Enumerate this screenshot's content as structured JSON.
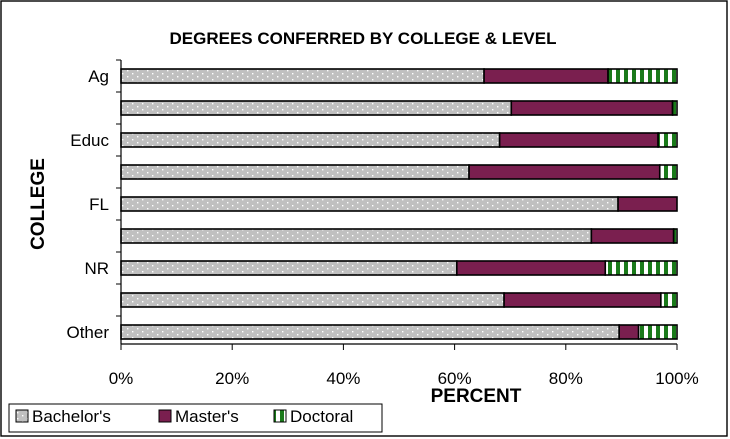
{
  "chart_data": {
    "type": "bar",
    "orientation": "horizontal",
    "stacked": "percent",
    "title": "DEGREES CONFERRED BY COLLEGE & LEVEL",
    "xlabel": "PERCENT",
    "ylabel": "COLLEGE",
    "xlim": [
      0,
      100
    ],
    "x_ticks": [
      "0%",
      "20%",
      "40%",
      "60%",
      "80%",
      "100%"
    ],
    "categories": [
      "Ag",
      "",
      "Educ",
      "",
      "FL",
      "",
      "NR",
      "",
      "Other"
    ],
    "series": [
      {
        "name": "Bachelor's",
        "values": [
          65.3,
          70.2,
          68.1,
          62.6,
          89.4,
          84.6,
          60.4,
          68.9,
          89.6
        ]
      },
      {
        "name": "Master's",
        "values": [
          22.3,
          29.0,
          28.5,
          34.3,
          10.6,
          14.8,
          26.7,
          28.2,
          3.5
        ]
      },
      {
        "name": "Doctoral",
        "values": [
          12.4,
          0.8,
          3.4,
          3.1,
          0.0,
          0.6,
          12.9,
          2.9,
          6.9
        ]
      }
    ],
    "colors": {
      "bachelors": "#c0c0c0",
      "masters": "#7a1f4f",
      "doctoral": "#1a7a1a"
    },
    "legend": "bottom-left",
    "grid": false
  }
}
